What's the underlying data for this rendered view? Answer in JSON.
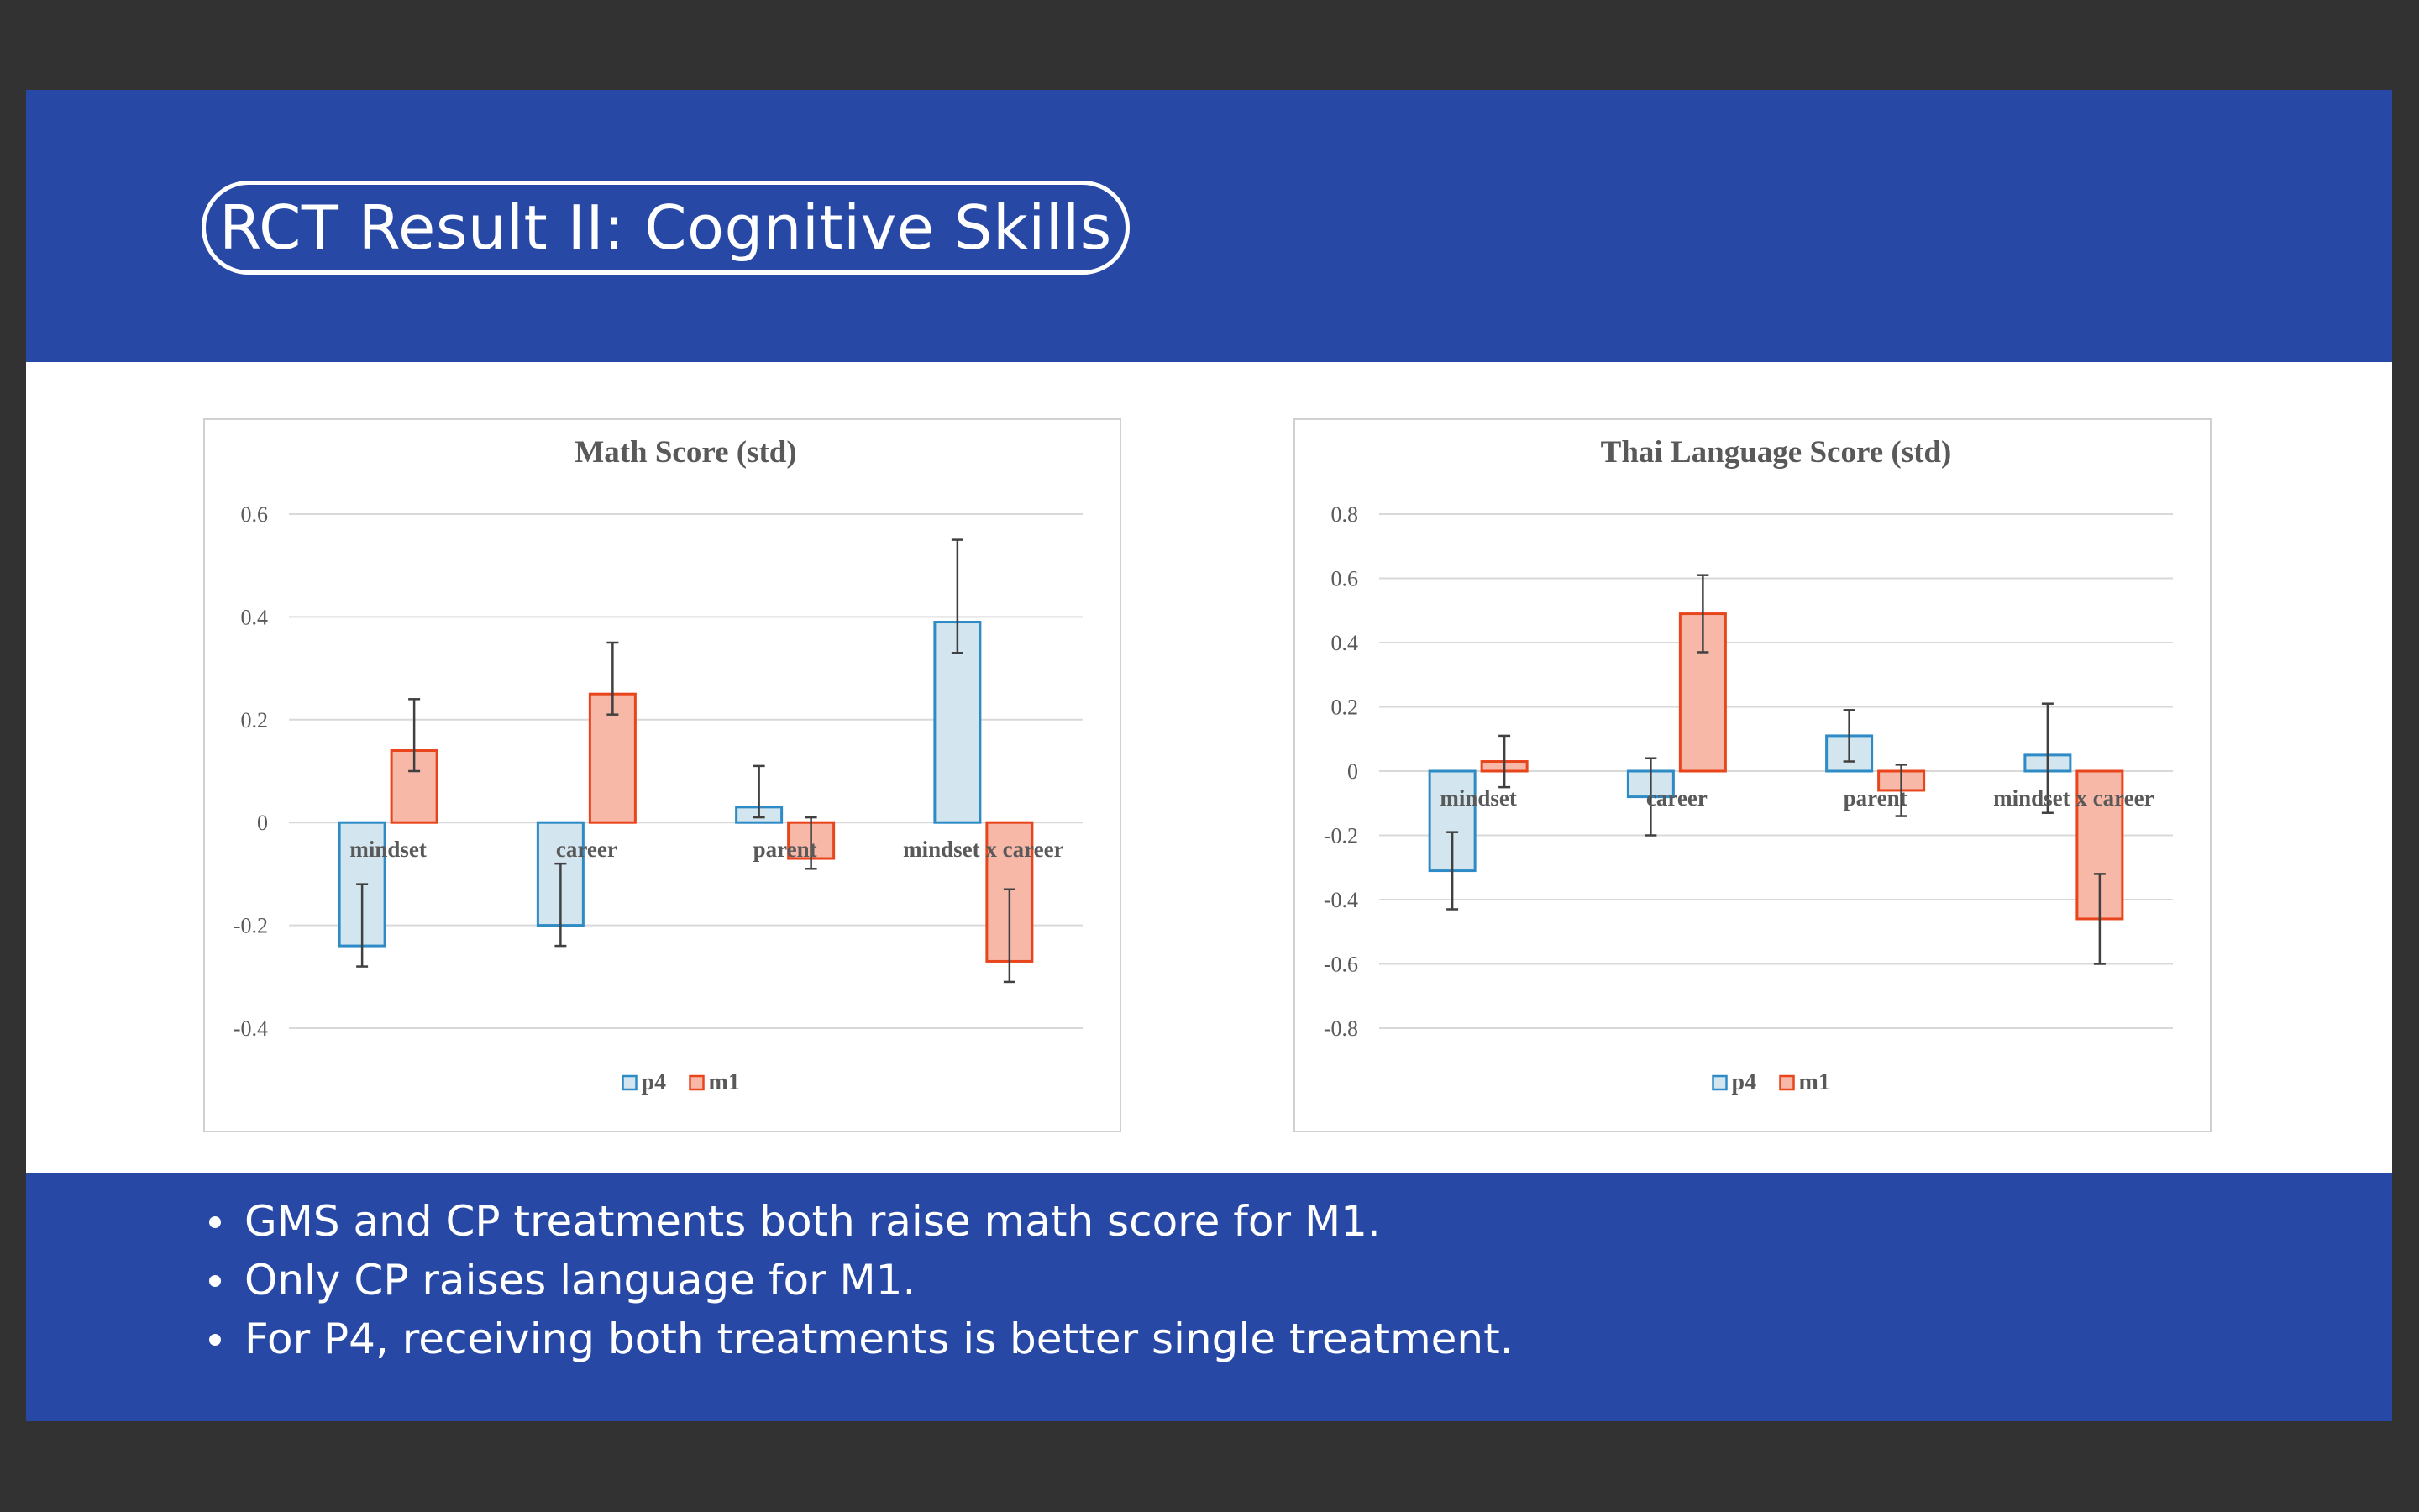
{
  "header": {
    "title": "RCT Result II: Cognitive Skills"
  },
  "footer": {
    "bullets": [
      "GMS and CP treatments both raise math score for M1.",
      "Only CP raises language for M1.",
      "For P4, receiving both treatments is better single treatment."
    ]
  },
  "colors": {
    "header_bg": "#2749a5",
    "p4_fill": "#d3e5ee",
    "p4_stroke": "#2e8bc6",
    "m1_fill": "#f8b8a8",
    "m1_stroke": "#e8451d"
  },
  "chart_data": [
    {
      "type": "bar",
      "title": "Math Score (std)",
      "categories": [
        "mindset",
        "career",
        "parent",
        "mindset x career"
      ],
      "ylim": [
        -0.4,
        0.6
      ],
      "yticks": [
        0.6,
        0.4,
        0.2,
        0,
        -0.2,
        -0.4
      ],
      "ytick_labels": [
        "0.6",
        "0.4",
        "0.2",
        "0",
        "-0.2",
        "-0.4"
      ],
      "grid": true,
      "legend": "bottom",
      "series": [
        {
          "name": "p4",
          "values": [
            -0.24,
            -0.2,
            0.03,
            0.39
          ],
          "err_low": [
            -0.28,
            -0.24,
            0.01,
            0.33
          ],
          "err_high": [
            -0.12,
            -0.08,
            0.11,
            0.55
          ]
        },
        {
          "name": "m1",
          "values": [
            0.14,
            0.25,
            -0.07,
            -0.27
          ],
          "err_low": [
            0.1,
            0.21,
            -0.09,
            -0.31
          ],
          "err_high": [
            0.24,
            0.35,
            0.01,
            -0.13
          ]
        }
      ]
    },
    {
      "type": "bar",
      "title": "Thai Language Score (std)",
      "categories": [
        "mindset",
        "career",
        "parent",
        "mindset x career"
      ],
      "ylim": [
        -0.8,
        0.8
      ],
      "yticks": [
        0.8,
        0.6,
        0.4,
        0.2,
        0,
        -0.2,
        -0.4,
        -0.6,
        -0.8
      ],
      "ytick_labels": [
        "0.8",
        "0.6",
        "0.4",
        "0.2",
        "0",
        "-0.2",
        "-0.4",
        "-0.6",
        "-0.8"
      ],
      "grid": true,
      "legend": "bottom",
      "series": [
        {
          "name": "p4",
          "values": [
            -0.31,
            -0.08,
            0.11,
            0.05
          ],
          "err_low": [
            -0.43,
            -0.2,
            0.03,
            -0.13
          ],
          "err_high": [
            -0.19,
            0.04,
            0.19,
            0.21
          ]
        },
        {
          "name": "m1",
          "values": [
            0.03,
            0.49,
            -0.06,
            -0.46
          ],
          "err_low": [
            -0.05,
            0.37,
            -0.14,
            -0.6
          ],
          "err_high": [
            0.11,
            0.61,
            0.02,
            -0.32
          ]
        }
      ]
    }
  ]
}
